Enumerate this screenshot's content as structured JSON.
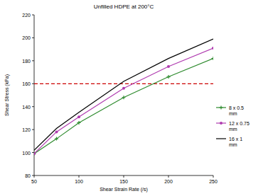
{
  "chart_data": {
    "type": "line",
    "title": "Unfilled HDPE at 200°C",
    "x_label": "Shear Strain Rate (/s)",
    "y_label": "Shear Stress (kPa)",
    "x": [
      50,
      75,
      100,
      150,
      200,
      250
    ],
    "series": [
      {
        "name": "8 x 0.5 mm",
        "color": "#2e8b2e",
        "marker": "plus",
        "line_style": "solid",
        "values": [
          99,
          112,
          126,
          148,
          166,
          182
        ]
      },
      {
        "name": "12 x 0.75 mm",
        "color": "#b03cb0",
        "marker": "circle",
        "line_style": "solid",
        "values": [
          99,
          118,
          131,
          156,
          175,
          191
        ]
      },
      {
        "name": "16 x 1 mm",
        "color": "#000000",
        "marker": "none",
        "line_style": "solid",
        "values": [
          102,
          121,
          135,
          162,
          182,
          199
        ]
      }
    ],
    "reference_lines": [
      {
        "value": 160,
        "color": "#cc0000",
        "line_style": "dashed"
      }
    ],
    "xlim": [
      50,
      250
    ],
    "xticks": [
      50,
      100,
      150,
      200,
      250
    ],
    "ylim": [
      80,
      220
    ],
    "yticks": [
      80,
      100,
      120,
      140,
      160,
      180,
      200,
      220
    ],
    "grid": false,
    "legend": "right"
  }
}
